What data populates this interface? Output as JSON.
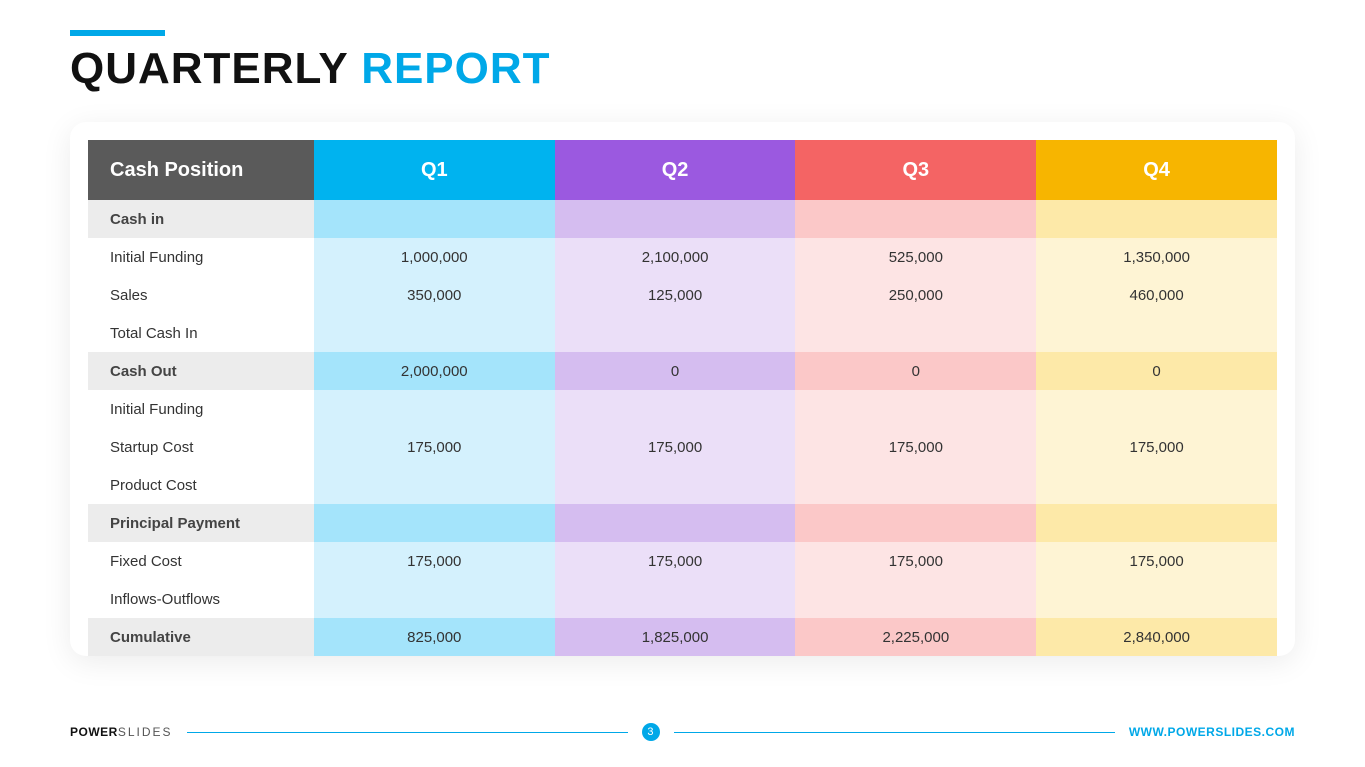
{
  "title": {
    "word1": "QUARTERLY",
    "word2": "REPORT"
  },
  "accent_color": "#00a8e8",
  "table": {
    "header_label": "Cash Position",
    "header_label_bg": "#5a5a5a",
    "quarters": [
      {
        "label": "Q1",
        "header_bg": "#00b3ef",
        "section_bg": "#a4e4fb",
        "row_bg": "#d4f1fd",
        "alt_bg": "#bfeafc"
      },
      {
        "label": "Q2",
        "header_bg": "#9b59e0",
        "section_bg": "#d5bdf0",
        "row_bg": "#ebdff8",
        "alt_bg": "#decdf3"
      },
      {
        "label": "Q3",
        "header_bg": "#f46464",
        "section_bg": "#fbc8c8",
        "row_bg": "#fde4e4",
        "alt_bg": "#fcd5d5"
      },
      {
        "label": "Q4",
        "header_bg": "#f7b500",
        "section_bg": "#fde9a8",
        "row_bg": "#fef4d4",
        "alt_bg": "#fdeebc"
      }
    ],
    "rows": [
      {
        "type": "section",
        "label": "Cash in",
        "cells": [
          "",
          "",
          "",
          ""
        ]
      },
      {
        "type": "data",
        "label": "Initial Funding",
        "cells": [
          "1,000,000",
          "2,100,000",
          "525,000",
          "1,350,000"
        ]
      },
      {
        "type": "data",
        "label": "Sales",
        "cells": [
          "350,000",
          "125,000",
          "250,000",
          "460,000"
        ]
      },
      {
        "type": "data",
        "label": "Total Cash In",
        "cells": [
          "",
          "",
          "",
          ""
        ]
      },
      {
        "type": "section",
        "label": "Cash Out",
        "cells": [
          "2,000,000",
          "0",
          "0",
          "0"
        ]
      },
      {
        "type": "data",
        "label": "Initial Funding",
        "cells": [
          "",
          "",
          "",
          ""
        ]
      },
      {
        "type": "data",
        "label": "Startup Cost",
        "cells": [
          "175,000",
          "175,000",
          "175,000",
          "175,000"
        ]
      },
      {
        "type": "data",
        "label": "Product Cost",
        "cells": [
          "",
          "",
          "",
          ""
        ]
      },
      {
        "type": "section",
        "label": "Principal Payment",
        "cells": [
          "",
          "",
          "",
          ""
        ]
      },
      {
        "type": "data",
        "label": "Fixed Cost",
        "cells": [
          "175,000",
          "175,000",
          "175,000",
          "175,000"
        ]
      },
      {
        "type": "data",
        "label": "Inflows-Outflows",
        "cells": [
          "",
          "",
          "",
          ""
        ]
      },
      {
        "type": "section",
        "label": "Cumulative",
        "cells": [
          "825,000",
          "1,825,000",
          "2,225,000",
          "2,840,000"
        ]
      }
    ]
  },
  "footer": {
    "brand1": "POWER",
    "brand2": "SLIDES",
    "page": "3",
    "url": "WWW.POWERSLIDES.COM"
  }
}
